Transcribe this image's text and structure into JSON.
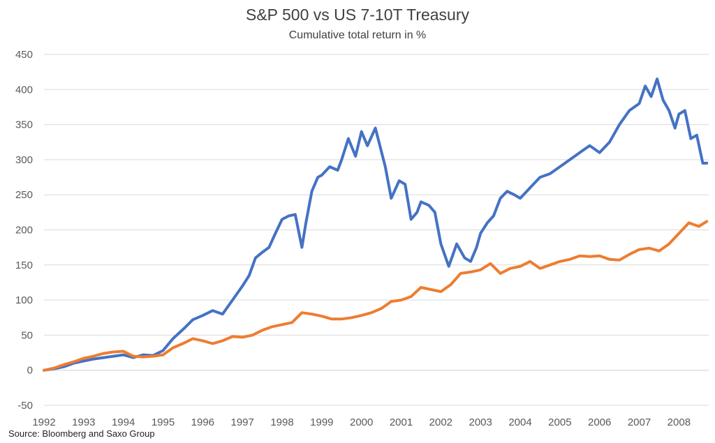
{
  "title": "S&P 500 vs US 7-10T Treasury",
  "subtitle": "Cumulative total return in %",
  "source": "Source: Bloomberg and Saxo Group",
  "chart_data": {
    "type": "line",
    "title": "S&P 500 vs US 7-10T Treasury",
    "subtitle": "Cumulative total return in %",
    "xlabel": "",
    "ylabel": "",
    "ylim": [
      -50,
      450
    ],
    "yticks": [
      -50,
      0,
      50,
      100,
      150,
      200,
      250,
      300,
      350,
      400,
      450
    ],
    "xlim": [
      1992,
      2008.75
    ],
    "xticks": [
      "1992",
      "1993",
      "1994",
      "1995",
      "1996",
      "1997",
      "1998",
      "1999",
      "2000",
      "2001",
      "2002",
      "2003",
      "2004",
      "2005",
      "2006",
      "2007",
      "2008"
    ],
    "grid": "horizontal",
    "legend": "none",
    "series": [
      {
        "color": "#4472C4",
        "x": [
          1992.0,
          1992.25,
          1992.5,
          1992.75,
          1993.0,
          1993.25,
          1993.5,
          1993.75,
          1994.0,
          1994.25,
          1994.5,
          1994.75,
          1995.0,
          1995.25,
          1995.5,
          1995.75,
          1996.0,
          1996.25,
          1996.5,
          1996.75,
          1997.0,
          1997.17,
          1997.33,
          1997.5,
          1997.67,
          1997.83,
          1998.0,
          1998.17,
          1998.33,
          1998.5,
          1998.6,
          1998.75,
          1998.9,
          1999.0,
          1999.2,
          1999.4,
          1999.5,
          1999.67,
          1999.85,
          2000.0,
          2000.15,
          2000.35,
          2000.6,
          2000.75,
          2000.95,
          2001.1,
          2001.25,
          2001.4,
          2001.5,
          2001.7,
          2001.85,
          2002.0,
          2002.2,
          2002.4,
          2002.6,
          2002.75,
          2002.9,
          2003.0,
          2003.17,
          2003.33,
          2003.5,
          2003.67,
          2003.85,
          2004.0,
          2004.25,
          2004.5,
          2004.75,
          2005.0,
          2005.25,
          2005.5,
          2005.75,
          2006.0,
          2006.25,
          2006.5,
          2006.75,
          2007.0,
          2007.15,
          2007.3,
          2007.45,
          2007.6,
          2007.75,
          2007.9,
          2008.0,
          2008.15,
          2008.3,
          2008.45,
          2008.6,
          2008.7
        ],
        "values": [
          0,
          2,
          5,
          10,
          13,
          16,
          18,
          20,
          22,
          18,
          22,
          21,
          28,
          45,
          58,
          72,
          78,
          85,
          80,
          100,
          120,
          135,
          160,
          168,
          175,
          195,
          215,
          220,
          222,
          175,
          210,
          255,
          275,
          278,
          290,
          285,
          300,
          330,
          305,
          340,
          320,
          345,
          290,
          245,
          270,
          265,
          215,
          225,
          240,
          235,
          225,
          180,
          148,
          180,
          160,
          155,
          175,
          195,
          210,
          220,
          245,
          255,
          250,
          245,
          260,
          275,
          280,
          290,
          300,
          310,
          320,
          310,
          325,
          350,
          370,
          380,
          405,
          390,
          415,
          385,
          370,
          345,
          365,
          370,
          330,
          335,
          295,
          295
        ]
      },
      {
        "color": "#ED7D31",
        "x": [
          1992.0,
          1992.25,
          1992.5,
          1992.75,
          1993.0,
          1993.25,
          1993.5,
          1993.75,
          1994.0,
          1994.25,
          1994.5,
          1994.75,
          1995.0,
          1995.25,
          1995.5,
          1995.75,
          1996.0,
          1996.25,
          1996.5,
          1996.75,
          1997.0,
          1997.25,
          1997.5,
          1997.75,
          1998.0,
          1998.25,
          1998.5,
          1998.75,
          1999.0,
          1999.25,
          1999.5,
          1999.75,
          2000.0,
          2000.25,
          2000.5,
          2000.75,
          2001.0,
          2001.25,
          2001.5,
          2001.75,
          2002.0,
          2002.25,
          2002.5,
          2002.75,
          2003.0,
          2003.25,
          2003.5,
          2003.75,
          2004.0,
          2004.25,
          2004.5,
          2004.75,
          2005.0,
          2005.25,
          2005.5,
          2005.75,
          2006.0,
          2006.25,
          2006.5,
          2006.75,
          2007.0,
          2007.25,
          2007.5,
          2007.75,
          2008.0,
          2008.25,
          2008.5,
          2008.7
        ],
        "values": [
          0,
          3,
          8,
          12,
          17,
          20,
          24,
          26,
          27,
          20,
          19,
          20,
          22,
          32,
          38,
          45,
          42,
          38,
          42,
          48,
          47,
          50,
          57,
          62,
          65,
          68,
          82,
          80,
          77,
          73,
          73,
          75,
          78,
          82,
          88,
          98,
          100,
          105,
          118,
          115,
          112,
          122,
          138,
          140,
          143,
          152,
          138,
          145,
          148,
          155,
          145,
          150,
          155,
          158,
          163,
          162,
          163,
          158,
          157,
          165,
          172,
          174,
          170,
          180,
          195,
          210,
          205,
          212
        ]
      }
    ]
  }
}
